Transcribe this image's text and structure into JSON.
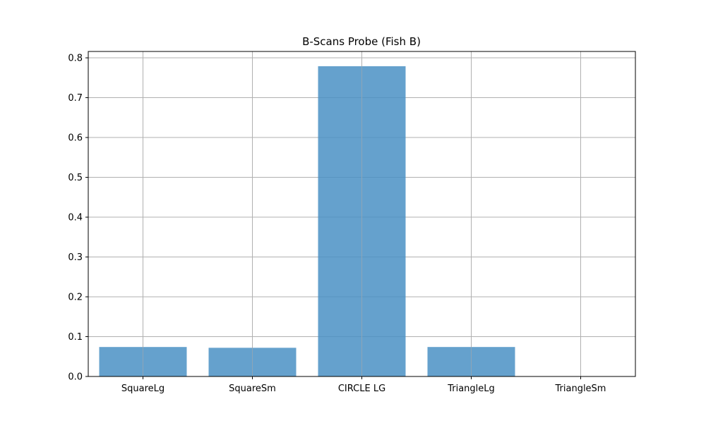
{
  "chart_data": {
    "type": "bar",
    "title": "B-Scans Probe (Fish B)",
    "xlabel": "",
    "ylabel": "",
    "categories": [
      "SquareLg",
      "SquareSm",
      "CIRCLE LG",
      "TriangleLg",
      "TriangleSm"
    ],
    "values": [
      0.074,
      0.072,
      0.779,
      0.074,
      0.0
    ],
    "ylim": [
      0,
      0.816
    ],
    "yticks": [
      0.0,
      0.1,
      0.2,
      0.3,
      0.4,
      0.5,
      0.6,
      0.7,
      0.8
    ],
    "ytick_labels": [
      "0.0",
      "0.1",
      "0.2",
      "0.3",
      "0.4",
      "0.5",
      "0.6",
      "0.7",
      "0.8"
    ],
    "grid": true,
    "bar_color": "#4a90c4",
    "grid_color": "#b0b0b0"
  }
}
